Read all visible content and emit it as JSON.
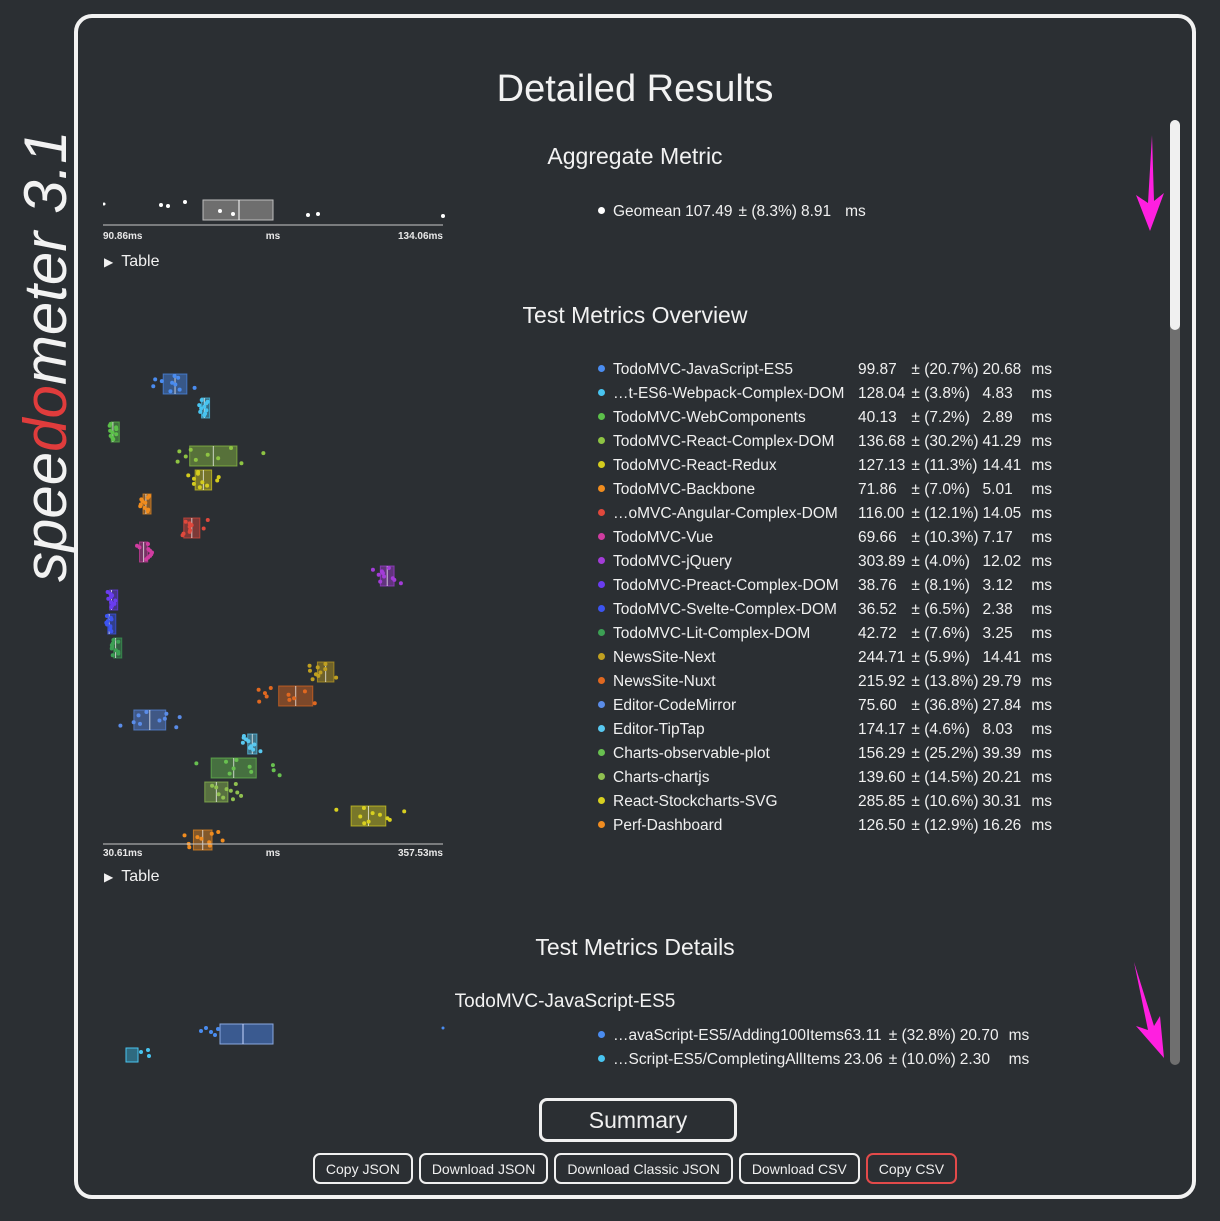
{
  "logo": {
    "prefix": "spee",
    "highlight": "do",
    "suffix": "meter",
    "version": "3.1"
  },
  "title": "Detailed Results",
  "aggregate": {
    "heading": "Aggregate Metric",
    "axis": {
      "min": "90.86ms",
      "unit": "ms",
      "max": "134.06ms"
    },
    "toggle": "Table",
    "rows": [
      {
        "name": "Geomean",
        "value": "107.49",
        "deviation": "± (8.3%)",
        "delta": "8.91",
        "unit": "ms",
        "color": "#ffffff"
      }
    ]
  },
  "overview": {
    "heading": "Test Metrics Overview",
    "axis": {
      "min": "30.61ms",
      "unit": "ms",
      "max": "357.53ms"
    },
    "toggle": "Table",
    "rows": [
      {
        "name": "TodoMVC-JavaScript-ES5",
        "value": "99.87",
        "deviation": "± (20.7%)",
        "delta": "20.68",
        "unit": "ms",
        "color": "#4a8cf0"
      },
      {
        "name": "…t-ES6-Webpack-Complex-DOM",
        "value": "128.04",
        "deviation": "± (3.8%)",
        "delta": "4.83",
        "unit": "ms",
        "color": "#48c4f0"
      },
      {
        "name": "TodoMVC-WebComponents",
        "value": "40.13",
        "deviation": "± (7.2%)",
        "delta": "2.89",
        "unit": "ms",
        "color": "#5cc04a"
      },
      {
        "name": "TodoMVC-React-Complex-DOM",
        "value": "136.68",
        "deviation": "± (30.2%)",
        "delta": "41.29",
        "unit": "ms",
        "color": "#8ec443"
      },
      {
        "name": "TodoMVC-React-Redux",
        "value": "127.13",
        "deviation": "± (11.3%)",
        "delta": "14.41",
        "unit": "ms",
        "color": "#d4cc1e"
      },
      {
        "name": "TodoMVC-Backbone",
        "value": "71.86",
        "deviation": "± (7.0%)",
        "delta": "5.01",
        "unit": "ms",
        "color": "#f08c1e"
      },
      {
        "name": "…oMVC-Angular-Complex-DOM",
        "value": "116.00",
        "deviation": "± (12.1%)",
        "delta": "14.05",
        "unit": "ms",
        "color": "#e0483c"
      },
      {
        "name": "TodoMVC-Vue",
        "value": "69.66",
        "deviation": "± (10.3%)",
        "delta": "7.17",
        "unit": "ms",
        "color": "#d03ca0"
      },
      {
        "name": "TodoMVC-jQuery",
        "value": "303.89",
        "deviation": "± (4.0%)",
        "delta": "12.02",
        "unit": "ms",
        "color": "#a33cd8"
      },
      {
        "name": "TodoMVC-Preact-Complex-DOM",
        "value": "38.76",
        "deviation": "± (8.1%)",
        "delta": "3.12",
        "unit": "ms",
        "color": "#6a3cf0"
      },
      {
        "name": "TodoMVC-Svelte-Complex-DOM",
        "value": "36.52",
        "deviation": "± (6.5%)",
        "delta": "2.38",
        "unit": "ms",
        "color": "#3c54f0"
      },
      {
        "name": "TodoMVC-Lit-Complex-DOM",
        "value": "42.72",
        "deviation": "± (7.6%)",
        "delta": "3.25",
        "unit": "ms",
        "color": "#3ca054"
      },
      {
        "name": "NewsSite-Next",
        "value": "244.71",
        "deviation": "± (5.9%)",
        "delta": "14.41",
        "unit": "ms",
        "color": "#c0a020"
      },
      {
        "name": "NewsSite-Nuxt",
        "value": "215.92",
        "deviation": "± (13.8%)",
        "delta": "29.79",
        "unit": "ms",
        "color": "#e06820"
      },
      {
        "name": "Editor-CodeMirror",
        "value": "75.60",
        "deviation": "± (36.8%)",
        "delta": "27.84",
        "unit": "ms",
        "color": "#5a8ce8"
      },
      {
        "name": "Editor-TipTap",
        "value": "174.17",
        "deviation": "± (4.6%)",
        "delta": "8.03",
        "unit": "ms",
        "color": "#58c8f0"
      },
      {
        "name": "Charts-observable-plot",
        "value": "156.29",
        "deviation": "± (25.2%)",
        "delta": "39.39",
        "unit": "ms",
        "color": "#68c050"
      },
      {
        "name": "Charts-chartjs",
        "value": "139.60",
        "deviation": "± (14.5%)",
        "delta": "20.21",
        "unit": "ms",
        "color": "#90c050"
      },
      {
        "name": "React-Stockcharts-SVG",
        "value": "285.85",
        "deviation": "± (10.6%)",
        "delta": "30.31",
        "unit": "ms",
        "color": "#d8d020"
      },
      {
        "name": "Perf-Dashboard",
        "value": "126.50",
        "deviation": "± (12.9%)",
        "delta": "16.26",
        "unit": "ms",
        "color": "#f08c20"
      }
    ]
  },
  "details": {
    "heading": "Test Metrics Details",
    "subheading": "TodoMVC-JavaScript-ES5",
    "rows": [
      {
        "name": "…avaScript-ES5/Adding100Items",
        "value": "63.11",
        "deviation": "± (32.8%)",
        "delta": "20.70",
        "unit": "ms",
        "color": "#4a8cf0"
      },
      {
        "name": "…Script-ES5/CompletingAllItems",
        "value": "23.06",
        "deviation": "± (10.0%)",
        "delta": "2.30",
        "unit": "ms",
        "color": "#48c4f0"
      }
    ]
  },
  "buttons": {
    "summary": "Summary",
    "actions": [
      {
        "label": "Copy JSON",
        "name": "copy-json-button"
      },
      {
        "label": "Download JSON",
        "name": "download-json-button"
      },
      {
        "label": "Download Classic JSON",
        "name": "download-classic-json-button"
      },
      {
        "label": "Download CSV",
        "name": "download-csv-button"
      },
      {
        "label": "Copy CSV",
        "name": "copy-csv-button",
        "accent": "#e34a4a"
      }
    ]
  },
  "colors": {
    "background": "#2b2f33",
    "logo_red": "#e03c3c",
    "arrow": "#ff1fe0",
    "scroll_track": "#6f6f6f"
  }
}
